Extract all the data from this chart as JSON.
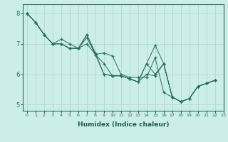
{
  "xlabel": "Humidex (Indice chaleur)",
  "background_color": "#cceee8",
  "grid_color": "#aad4ce",
  "line_color": "#2a6b60",
  "marker": "+",
  "xlim": [
    -0.5,
    23
  ],
  "ylim": [
    4.8,
    8.3
  ],
  "yticks": [
    5,
    6,
    7,
    8
  ],
  "xticks": [
    0,
    1,
    2,
    3,
    4,
    5,
    6,
    7,
    8,
    9,
    10,
    11,
    12,
    13,
    14,
    15,
    16,
    17,
    18,
    19,
    20,
    21,
    22,
    23
  ],
  "lines": [
    [
      8.0,
      7.7,
      7.3,
      7.0,
      7.15,
      7.0,
      6.85,
      7.3,
      6.7,
      6.0,
      5.95,
      5.95,
      5.85,
      5.75,
      6.35,
      6.95,
      6.35,
      5.25,
      5.1,
      5.2,
      5.6,
      5.7,
      5.8
    ],
    [
      8.0,
      7.7,
      7.3,
      7.0,
      7.0,
      6.85,
      6.85,
      7.3,
      6.65,
      6.7,
      6.6,
      6.0,
      5.9,
      5.9,
      5.9,
      6.55,
      5.4,
      5.25,
      5.1,
      5.2,
      5.6,
      5.7,
      5.8
    ],
    [
      8.0,
      7.7,
      7.3,
      7.0,
      7.0,
      6.85,
      6.85,
      7.2,
      6.65,
      6.35,
      5.95,
      5.95,
      5.85,
      5.75,
      6.35,
      6.0,
      6.35,
      5.25,
      5.1,
      5.2,
      5.6,
      5.7,
      5.8
    ],
    [
      8.0,
      7.7,
      7.3,
      7.0,
      7.0,
      6.85,
      6.85,
      7.0,
      6.65,
      6.0,
      5.95,
      5.95,
      5.85,
      5.75,
      6.0,
      5.95,
      6.35,
      5.25,
      5.1,
      5.2,
      5.6,
      5.7,
      5.8
    ]
  ]
}
